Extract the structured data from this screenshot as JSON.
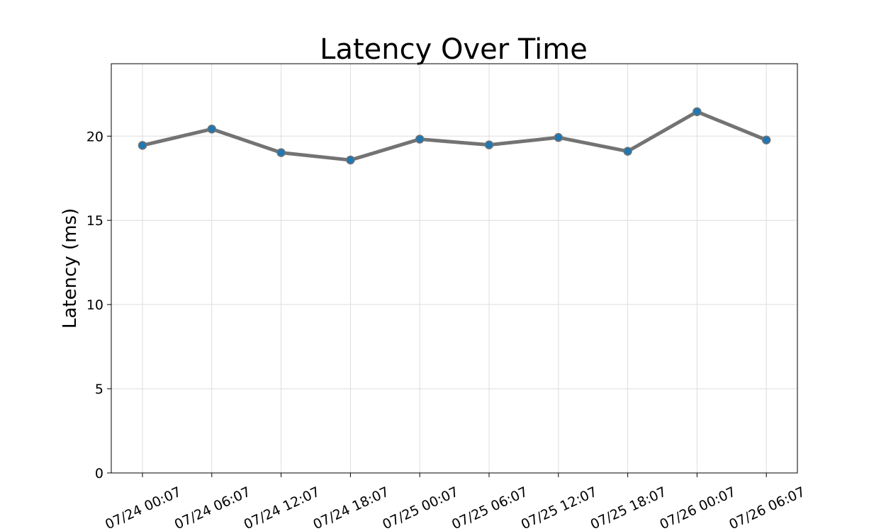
{
  "chart_data": {
    "type": "line",
    "title": "Latency Over Time",
    "xlabel": "",
    "ylabel": "Latency (ms)",
    "categories": [
      "07/24 00:07",
      "07/24 06:07",
      "07/24 12:07",
      "07/24 18:07",
      "07/25 00:07",
      "07/25 06:07",
      "07/25 12:07",
      "07/25 18:07",
      "07/26 00:07",
      "07/26 06:07"
    ],
    "values": [
      19.45,
      20.42,
      19.02,
      18.58,
      19.82,
      19.48,
      19.92,
      19.1,
      21.45,
      19.77
    ],
    "ylim": [
      0,
      24.3
    ],
    "yticks": [
      0,
      5,
      10,
      15,
      20
    ],
    "grid": true,
    "colors": {
      "line": "#737373",
      "marker": "#1f77b4",
      "grid": "#dddddd",
      "axis": "#000000"
    }
  }
}
